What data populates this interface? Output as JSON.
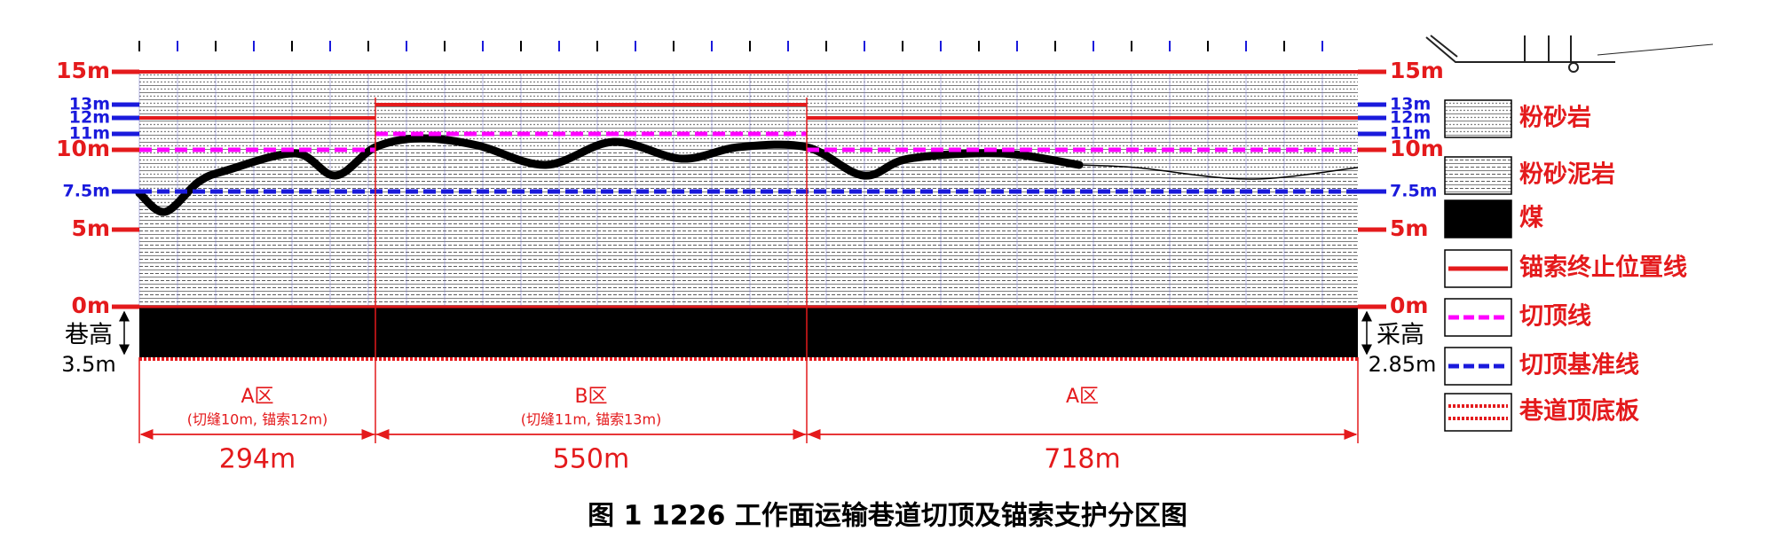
{
  "left_labels": [
    "15m",
    "13m",
    "12m",
    "11m",
    "10m",
    "7.5m",
    "5m",
    "0m"
  ],
  "right_labels": [
    "15m",
    "13m",
    "12m",
    "11m",
    "10m",
    "7.5m",
    "5m",
    "0m"
  ],
  "left_height": {
    "label": "巷高",
    "value": "3.5m"
  },
  "right_height": {
    "label": "采高",
    "value": "2.85m"
  },
  "zones": [
    {
      "name": "A区",
      "note": "(切缝10m, 锚索12m)",
      "length": "294m"
    },
    {
      "name": "B区",
      "note": "(切缝11m, 锚索13m)",
      "length": "550m"
    },
    {
      "name": "A区",
      "note": "",
      "length": "718m"
    }
  ],
  "legend": [
    "粉砂岩",
    "粉砂泥岩",
    "煤",
    "锚索终止位置线",
    "切顶线",
    "切顶基准线",
    "巷道顶底板"
  ],
  "caption": "图 1  1226 工作面运输巷道切顶及锚索支护分区图"
}
